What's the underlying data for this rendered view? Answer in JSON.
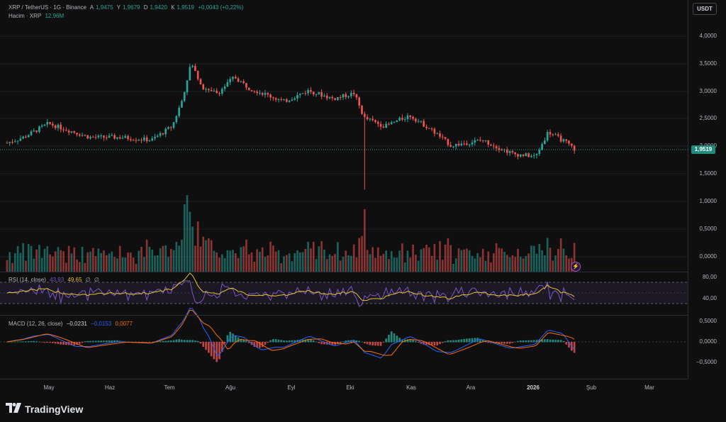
{
  "header": {
    "symbol": "XRP / TetherUS · 1G · Binance",
    "ohlc": [
      {
        "k": "A",
        "v": "1,9475"
      },
      {
        "k": "Y",
        "v": "1,9679"
      },
      {
        "k": "D",
        "v": "1,9420"
      },
      {
        "k": "K",
        "v": "1,9519"
      }
    ],
    "change": "+0,0043 (+0,22%)",
    "volume_label": "Hacim · XRP",
    "volume_value": "12,96M"
  },
  "currency_button": "USDT",
  "last_price": "1,9519",
  "price_ticks": [
    "4,0000",
    "3,5000",
    "3,0000",
    "2,5000",
    "2,0000",
    "1,5000",
    "1,0000",
    "0,5000",
    "0,0000"
  ],
  "rsi": {
    "label": "RSI (14, close)",
    "v1": "43,93",
    "v2": "49,65",
    "e1": "∅",
    "e2": "∅",
    "ticks": [
      "80,00",
      "40,00"
    ]
  },
  "macd": {
    "label": "MACD (12, 26, close)",
    "v1": "−0,0231",
    "v2": "−0,0153",
    "v3": "0,0077",
    "ticks": [
      "0,5000",
      "0,0000",
      "−0,5000"
    ]
  },
  "time_labels": [
    {
      "t": "May",
      "bold": false
    },
    {
      "t": "Haz",
      "bold": false
    },
    {
      "t": "Tem",
      "bold": false
    },
    {
      "t": "Ağu",
      "bold": false
    },
    {
      "t": "Eyl",
      "bold": false
    },
    {
      "t": "Eki",
      "bold": false
    },
    {
      "t": "Kas",
      "bold": false
    },
    {
      "t": "Ara",
      "bold": false
    },
    {
      "t": "2026",
      "bold": true
    },
    {
      "t": "Şub",
      "bold": false
    },
    {
      "t": "Mar",
      "bold": false
    }
  ],
  "brand": "TradingView",
  "icons": {
    "logo": "tradingview-logo-icon",
    "bolt": "lightning-icon"
  },
  "colors": {
    "up": "#26a69a",
    "down": "#ef5350",
    "rsi": "#7e57c2",
    "rsi_ma": "#e6c229",
    "macd": "#2962ff",
    "signal": "#ff6d00"
  },
  "chart_data": {
    "type": "candlestick",
    "price_path": [
      {
        "x": "Nis 20",
        "y": 2.1
      },
      {
        "x": "May 1",
        "y": 2.2
      },
      {
        "x": "May 12",
        "y": 2.45
      },
      {
        "x": "May 20",
        "y": 2.35
      },
      {
        "x": "Haz 1",
        "y": 2.2
      },
      {
        "x": "Haz 15",
        "y": 2.2
      },
      {
        "x": "Haz 30",
        "y": 2.15
      },
      {
        "x": "Tem 10",
        "y": 2.4
      },
      {
        "x": "Tem 15",
        "y": 2.9
      },
      {
        "x": "Tem 19",
        "y": 3.55
      },
      {
        "x": "Tem 25",
        "y": 3.1
      },
      {
        "x": "Ağu 1",
        "y": 3.0
      },
      {
        "x": "Ağu 8",
        "y": 3.3
      },
      {
        "x": "Ağu 15",
        "y": 3.1
      },
      {
        "x": "Eyl 1",
        "y": 2.85
      },
      {
        "x": "Eyl 13",
        "y": 3.05
      },
      {
        "x": "Eyl 25",
        "y": 2.9
      },
      {
        "x": "Eki 5",
        "y": 3.0
      },
      {
        "x": "Eki 10",
        "y": 2.55
      },
      {
        "x": "Eki 20",
        "y": 2.4
      },
      {
        "x": "Kas 1",
        "y": 2.6
      },
      {
        "x": "Kas 10",
        "y": 2.35
      },
      {
        "x": "Kas 20",
        "y": 2.05
      },
      {
        "x": "Ara 5",
        "y": 2.15
      },
      {
        "x": "Ara 20",
        "y": 1.9
      },
      {
        "x": "Ara 31",
        "y": 1.85
      },
      {
        "x": "Oca 6",
        "y": 2.3
      },
      {
        "x": "Oca 15",
        "y": 2.1
      },
      {
        "x": "Oca 20",
        "y": 1.95
      }
    ],
    "flash_low": {
      "x": "Eki 10",
      "y": 1.25
    },
    "ylim": [
      1.0,
      4.2
    ]
  }
}
